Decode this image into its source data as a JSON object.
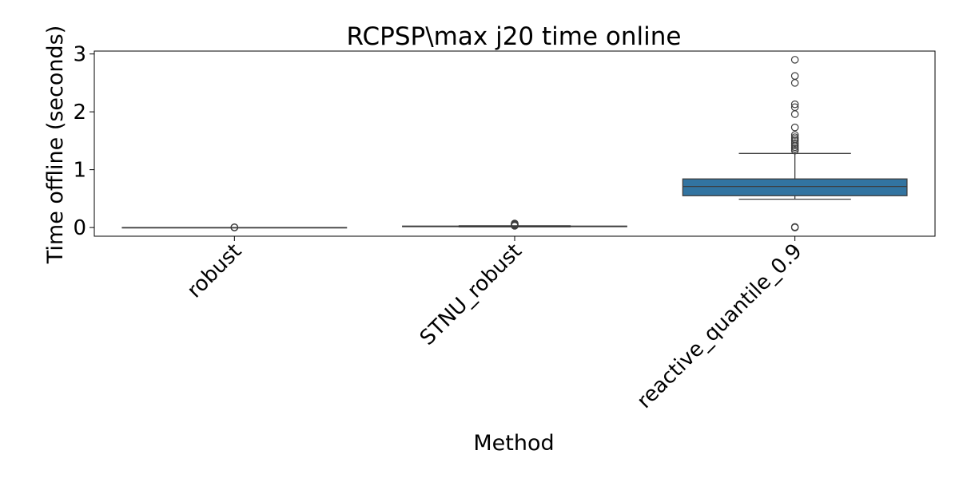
{
  "chart_data": {
    "type": "boxplot",
    "title": "RCPSP\\max j20 time online",
    "xlabel": "Method",
    "ylabel": "Time offline (seconds)",
    "ylim": [
      -0.15,
      3.05
    ],
    "yticks": [
      0,
      1,
      2,
      3
    ],
    "grid": false,
    "legend": "none",
    "box_color": "#3274a1",
    "categories": [
      "robust",
      "STNU_robust",
      "reactive_quantile_0.9"
    ],
    "boxes": [
      {
        "category": "robust",
        "whisker_low": 0.0,
        "q1": 0.0,
        "median": 0.0,
        "q3": 0.0,
        "whisker_high": 0.0,
        "outliers": [
          0.0,
          0.005
        ]
      },
      {
        "category": "STNU_robust",
        "whisker_low": 0.01,
        "q1": 0.015,
        "median": 0.02,
        "q3": 0.025,
        "whisker_high": 0.03,
        "outliers": [
          0.03,
          0.04,
          0.05,
          0.06,
          0.07
        ]
      },
      {
        "category": "reactive_quantile_0.9",
        "whisker_low": 0.49,
        "q1": 0.55,
        "median": 0.71,
        "q3": 0.84,
        "whisker_high": 1.28,
        "outliers": [
          0.0,
          0.01,
          1.33,
          1.36,
          1.39,
          1.42,
          1.46,
          1.5,
          1.53,
          1.56,
          1.6,
          1.73,
          1.96,
          2.08,
          2.13,
          2.5,
          2.62,
          2.9
        ]
      }
    ]
  }
}
